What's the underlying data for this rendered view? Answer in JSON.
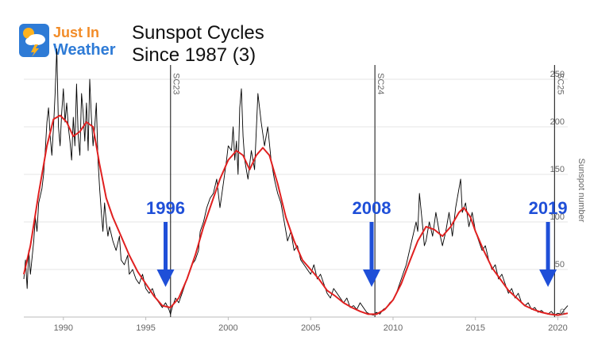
{
  "logo": {
    "line1": "Just In",
    "line2": "Weather"
  },
  "header": {
    "title_line1": "Sunspot Cycles",
    "title_line2": "Since 1987 (3)"
  },
  "chart_data": {
    "type": "line",
    "xlim": [
      1987.6,
      2020.6
    ],
    "ylim": [
      0,
      265
    ],
    "xticks": [
      1990,
      1995,
      2000,
      2005,
      2010,
      2015,
      2020
    ],
    "yticks": [
      0,
      50,
      100,
      150,
      200,
      250
    ],
    "ylabel": "Sunspot number",
    "cycle_markers": [
      {
        "label": "SC23",
        "x": 1996.5
      },
      {
        "label": "SC24",
        "x": 2008.9
      },
      {
        "label": "SC25",
        "x": 2019.8
      }
    ],
    "annotations": [
      {
        "label": "1996",
        "x": 1996.2,
        "color": "#1f4fd8"
      },
      {
        "label": "2008",
        "x": 2008.7,
        "color": "#1f4fd8"
      },
      {
        "label": "2019",
        "x": 2019.4,
        "color": "#1f4fd8"
      }
    ],
    "colors": {
      "monthly": "#000000",
      "smoothed": "#e02020",
      "annotation": "#1f4fd8"
    },
    "series": [
      {
        "style": "monthly",
        "points": [
          [
            1987.6,
            40
          ],
          [
            1987.7,
            60
          ],
          [
            1987.8,
            30
          ],
          [
            1987.9,
            70
          ],
          [
            1988.0,
            45
          ],
          [
            1988.2,
            80
          ],
          [
            1988.3,
            105
          ],
          [
            1988.4,
            90
          ],
          [
            1988.5,
            120
          ],
          [
            1988.7,
            135
          ],
          [
            1988.8,
            150
          ],
          [
            1988.9,
            175
          ],
          [
            1989.0,
            205
          ],
          [
            1989.1,
            220
          ],
          [
            1989.2,
            190
          ],
          [
            1989.3,
            170
          ],
          [
            1989.4,
            200
          ],
          [
            1989.5,
            235
          ],
          [
            1989.6,
            282
          ],
          [
            1989.7,
            200
          ],
          [
            1989.8,
            180
          ],
          [
            1989.9,
            215
          ],
          [
            1990.0,
            240
          ],
          [
            1990.1,
            205
          ],
          [
            1990.2,
            225
          ],
          [
            1990.3,
            200
          ],
          [
            1990.4,
            185
          ],
          [
            1990.5,
            165
          ],
          [
            1990.6,
            210
          ],
          [
            1990.7,
            180
          ],
          [
            1990.8,
            245
          ],
          [
            1990.9,
            190
          ],
          [
            1991.0,
            170
          ],
          [
            1991.1,
            235
          ],
          [
            1991.2,
            215
          ],
          [
            1991.3,
            185
          ],
          [
            1991.4,
            225
          ],
          [
            1991.5,
            175
          ],
          [
            1991.6,
            250
          ],
          [
            1991.7,
            210
          ],
          [
            1991.8,
            180
          ],
          [
            1991.9,
            200
          ],
          [
            1992.0,
            225
          ],
          [
            1992.1,
            165
          ],
          [
            1992.2,
            135
          ],
          [
            1992.3,
            110
          ],
          [
            1992.4,
            90
          ],
          [
            1992.5,
            120
          ],
          [
            1992.6,
            100
          ],
          [
            1992.7,
            85
          ],
          [
            1992.8,
            95
          ],
          [
            1993.0,
            80
          ],
          [
            1993.2,
            70
          ],
          [
            1993.4,
            85
          ],
          [
            1993.5,
            60
          ],
          [
            1993.7,
            55
          ],
          [
            1993.9,
            65
          ],
          [
            1994.0,
            45
          ],
          [
            1994.2,
            50
          ],
          [
            1994.4,
            40
          ],
          [
            1994.6,
            35
          ],
          [
            1994.8,
            45
          ],
          [
            1995.0,
            30
          ],
          [
            1995.2,
            25
          ],
          [
            1995.4,
            30
          ],
          [
            1995.6,
            20
          ],
          [
            1995.8,
            15
          ],
          [
            1996.0,
            10
          ],
          [
            1996.2,
            15
          ],
          [
            1996.4,
            8
          ],
          [
            1996.5,
            3
          ],
          [
            1996.6,
            10
          ],
          [
            1996.8,
            20
          ],
          [
            1997.0,
            15
          ],
          [
            1997.2,
            25
          ],
          [
            1997.4,
            35
          ],
          [
            1997.6,
            45
          ],
          [
            1997.8,
            55
          ],
          [
            1998.0,
            60
          ],
          [
            1998.2,
            70
          ],
          [
            1998.3,
            90
          ],
          [
            1998.5,
            100
          ],
          [
            1998.7,
            115
          ],
          [
            1998.9,
            125
          ],
          [
            1999.1,
            130
          ],
          [
            1999.3,
            145
          ],
          [
            1999.5,
            115
          ],
          [
            1999.7,
            140
          ],
          [
            1999.9,
            165
          ],
          [
            2000.0,
            180
          ],
          [
            2000.2,
            175
          ],
          [
            2000.3,
            200
          ],
          [
            2000.4,
            165
          ],
          [
            2000.5,
            185
          ],
          [
            2000.6,
            150
          ],
          [
            2000.7,
            220
          ],
          [
            2000.8,
            240
          ],
          [
            2000.9,
            190
          ],
          [
            2001.0,
            165
          ],
          [
            2001.2,
            145
          ],
          [
            2001.4,
            175
          ],
          [
            2001.6,
            155
          ],
          [
            2001.8,
            235
          ],
          [
            2002.0,
            205
          ],
          [
            2002.2,
            180
          ],
          [
            2002.4,
            200
          ],
          [
            2002.6,
            165
          ],
          [
            2002.8,
            145
          ],
          [
            2003.0,
            130
          ],
          [
            2003.2,
            120
          ],
          [
            2003.4,
            100
          ],
          [
            2003.6,
            80
          ],
          [
            2003.8,
            90
          ],
          [
            2004.0,
            70
          ],
          [
            2004.2,
            75
          ],
          [
            2004.4,
            60
          ],
          [
            2004.6,
            55
          ],
          [
            2004.8,
            50
          ],
          [
            2005.0,
            45
          ],
          [
            2005.2,
            55
          ],
          [
            2005.4,
            40
          ],
          [
            2005.6,
            45
          ],
          [
            2005.8,
            35
          ],
          [
            2006.0,
            25
          ],
          [
            2006.2,
            20
          ],
          [
            2006.4,
            30
          ],
          [
            2006.6,
            25
          ],
          [
            2006.8,
            20
          ],
          [
            2007.0,
            15
          ],
          [
            2007.2,
            20
          ],
          [
            2007.4,
            10
          ],
          [
            2007.6,
            12
          ],
          [
            2007.8,
            8
          ],
          [
            2008.0,
            15
          ],
          [
            2008.2,
            10
          ],
          [
            2008.4,
            5
          ],
          [
            2008.6,
            3
          ],
          [
            2008.8,
            2
          ],
          [
            2009.0,
            5
          ],
          [
            2009.2,
            3
          ],
          [
            2009.4,
            8
          ],
          [
            2009.6,
            10
          ],
          [
            2009.8,
            15
          ],
          [
            2010.0,
            18
          ],
          [
            2010.2,
            25
          ],
          [
            2010.4,
            35
          ],
          [
            2010.6,
            45
          ],
          [
            2010.8,
            55
          ],
          [
            2011.0,
            70
          ],
          [
            2011.2,
            85
          ],
          [
            2011.4,
            100
          ],
          [
            2011.5,
            90
          ],
          [
            2011.6,
            130
          ],
          [
            2011.8,
            95
          ],
          [
            2011.9,
            75
          ],
          [
            2012.0,
            80
          ],
          [
            2012.2,
            100
          ],
          [
            2012.4,
            85
          ],
          [
            2012.6,
            110
          ],
          [
            2012.8,
            90
          ],
          [
            2013.0,
            75
          ],
          [
            2013.2,
            90
          ],
          [
            2013.4,
            110
          ],
          [
            2013.6,
            85
          ],
          [
            2013.8,
            115
          ],
          [
            2014.0,
            135
          ],
          [
            2014.1,
            145
          ],
          [
            2014.2,
            110
          ],
          [
            2014.4,
            120
          ],
          [
            2014.6,
            95
          ],
          [
            2014.8,
            110
          ],
          [
            2015.0,
            90
          ],
          [
            2015.2,
            80
          ],
          [
            2015.4,
            70
          ],
          [
            2015.6,
            75
          ],
          [
            2015.8,
            60
          ],
          [
            2016.0,
            50
          ],
          [
            2016.2,
            55
          ],
          [
            2016.4,
            40
          ],
          [
            2016.6,
            45
          ],
          [
            2016.8,
            35
          ],
          [
            2017.0,
            25
          ],
          [
            2017.2,
            30
          ],
          [
            2017.4,
            20
          ],
          [
            2017.6,
            25
          ],
          [
            2017.8,
            15
          ],
          [
            2018.0,
            12
          ],
          [
            2018.2,
            15
          ],
          [
            2018.4,
            8
          ],
          [
            2018.6,
            10
          ],
          [
            2018.8,
            5
          ],
          [
            2019.0,
            7
          ],
          [
            2019.2,
            4
          ],
          [
            2019.4,
            3
          ],
          [
            2019.6,
            6
          ],
          [
            2019.8,
            2
          ],
          [
            2020.0,
            4
          ],
          [
            2020.2,
            3
          ],
          [
            2020.4,
            8
          ],
          [
            2020.6,
            12
          ]
        ]
      },
      {
        "style": "smoothed",
        "points": [
          [
            1987.6,
            45
          ],
          [
            1988.0,
            75
          ],
          [
            1988.5,
            130
          ],
          [
            1989.0,
            180
          ],
          [
            1989.4,
            208
          ],
          [
            1989.8,
            212
          ],
          [
            1990.2,
            205
          ],
          [
            1990.6,
            190
          ],
          [
            1991.0,
            195
          ],
          [
            1991.4,
            205
          ],
          [
            1991.8,
            200
          ],
          [
            1992.2,
            160
          ],
          [
            1992.6,
            125
          ],
          [
            1993.0,
            105
          ],
          [
            1993.5,
            85
          ],
          [
            1994.0,
            65
          ],
          [
            1994.5,
            48
          ],
          [
            1995.0,
            35
          ],
          [
            1995.5,
            22
          ],
          [
            1996.0,
            12
          ],
          [
            1996.5,
            10
          ],
          [
            1997.0,
            20
          ],
          [
            1997.5,
            40
          ],
          [
            1998.0,
            65
          ],
          [
            1998.5,
            95
          ],
          [
            1999.0,
            120
          ],
          [
            1999.5,
            145
          ],
          [
            2000.0,
            165
          ],
          [
            2000.5,
            175
          ],
          [
            2000.9,
            170
          ],
          [
            2001.3,
            155
          ],
          [
            2001.7,
            170
          ],
          [
            2002.1,
            178
          ],
          [
            2002.5,
            170
          ],
          [
            2003.0,
            140
          ],
          [
            2003.5,
            105
          ],
          [
            2004.0,
            80
          ],
          [
            2004.5,
            60
          ],
          [
            2005.0,
            50
          ],
          [
            2005.5,
            40
          ],
          [
            2006.0,
            28
          ],
          [
            2006.5,
            22
          ],
          [
            2007.0,
            15
          ],
          [
            2007.5,
            10
          ],
          [
            2008.0,
            6
          ],
          [
            2008.5,
            3
          ],
          [
            2009.0,
            3
          ],
          [
            2009.5,
            8
          ],
          [
            2010.0,
            18
          ],
          [
            2010.5,
            35
          ],
          [
            2011.0,
            58
          ],
          [
            2011.5,
            80
          ],
          [
            2012.0,
            95
          ],
          [
            2012.5,
            92
          ],
          [
            2013.0,
            85
          ],
          [
            2013.5,
            95
          ],
          [
            2014.0,
            110
          ],
          [
            2014.3,
            115
          ],
          [
            2014.7,
            105
          ],
          [
            2015.0,
            90
          ],
          [
            2015.5,
            70
          ],
          [
            2016.0,
            52
          ],
          [
            2016.5,
            40
          ],
          [
            2017.0,
            28
          ],
          [
            2017.5,
            20
          ],
          [
            2018.0,
            12
          ],
          [
            2018.5,
            8
          ],
          [
            2019.0,
            5
          ],
          [
            2019.5,
            3
          ],
          [
            2020.0,
            2
          ],
          [
            2020.6,
            4
          ]
        ]
      }
    ]
  }
}
